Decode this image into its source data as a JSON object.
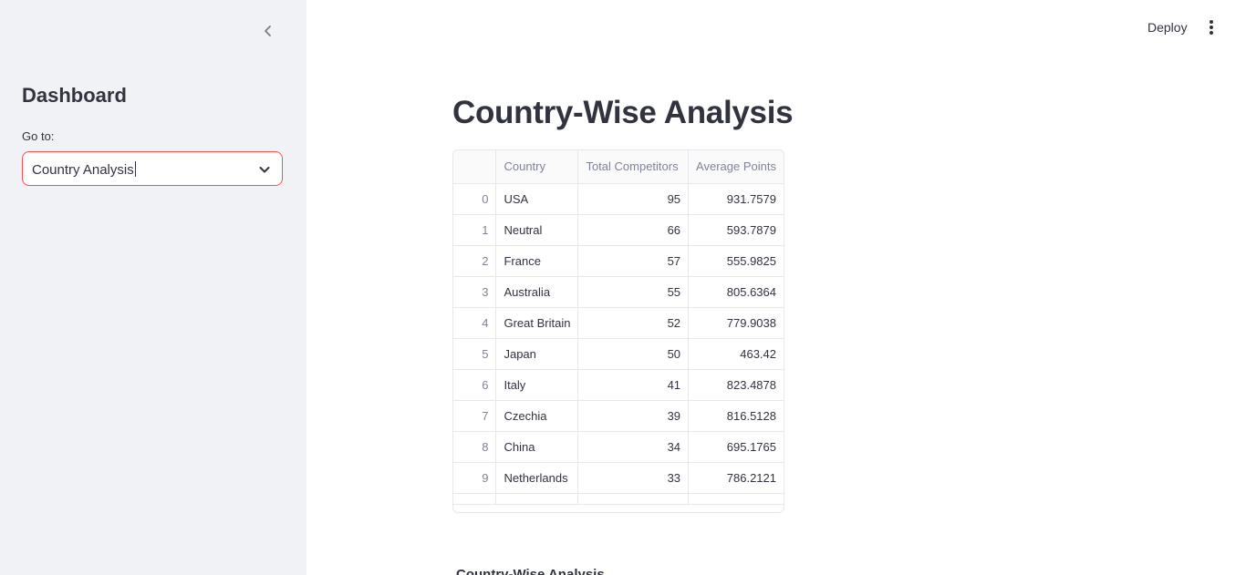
{
  "sidebar": {
    "title": "Dashboard",
    "select_label": "Go to:",
    "select_value": "Country Analysis"
  },
  "header": {
    "deploy_label": "Deploy"
  },
  "main": {
    "title": "Country-Wise Analysis",
    "subheading": "Country-Wise Analysis",
    "table": {
      "columns": [
        "",
        "Country",
        "Total Competitors",
        "Average Points"
      ],
      "rows": [
        [
          "0",
          "USA",
          "95",
          "931.7579"
        ],
        [
          "1",
          "Neutral",
          "66",
          "593.7879"
        ],
        [
          "2",
          "France",
          "57",
          "555.9825"
        ],
        [
          "3",
          "Australia",
          "55",
          "805.6364"
        ],
        [
          "4",
          "Great Britain",
          "52",
          "779.9038"
        ],
        [
          "5",
          "Japan",
          "50",
          "463.42"
        ],
        [
          "6",
          "Italy",
          "41",
          "823.4878"
        ],
        [
          "7",
          "Czechia",
          "39",
          "816.5128"
        ],
        [
          "8",
          "China",
          "34",
          "695.1765"
        ],
        [
          "9",
          "Netherlands",
          "33",
          "786.2121"
        ]
      ]
    }
  },
  "colors": {
    "sidebar_bg": "#f0f2f6",
    "accent": "#ff4b4b",
    "text": "#31333f",
    "muted": "#808495"
  }
}
